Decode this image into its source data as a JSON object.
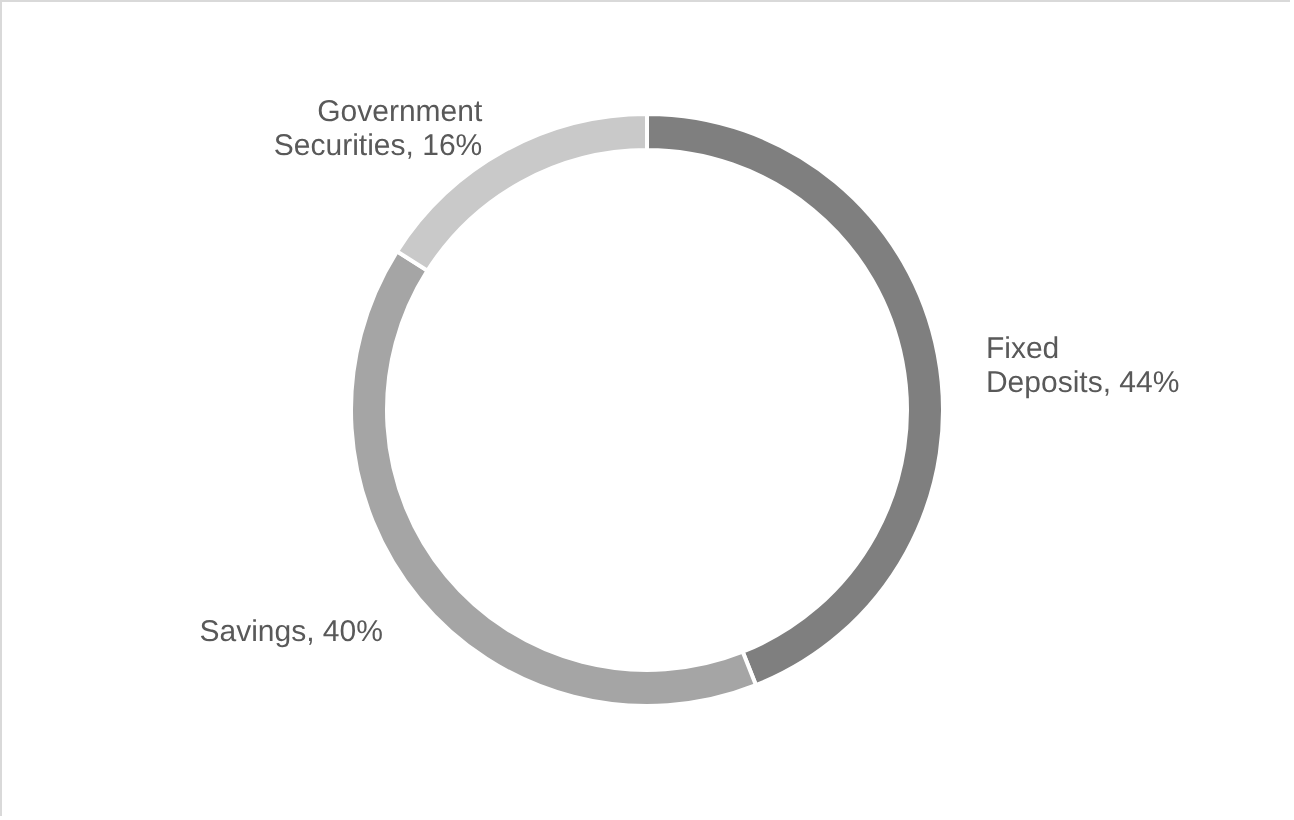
{
  "chart_data": {
    "type": "donut",
    "categories": [
      "Fixed Deposits",
      "Savings",
      "Government Securities"
    ],
    "values": [
      44,
      40,
      16
    ],
    "colors": [
      "#7f7f7f",
      "#a5a5a5",
      "#c9c9c9"
    ],
    "value_labels": [
      "44%",
      "40%",
      "16%"
    ]
  }
}
